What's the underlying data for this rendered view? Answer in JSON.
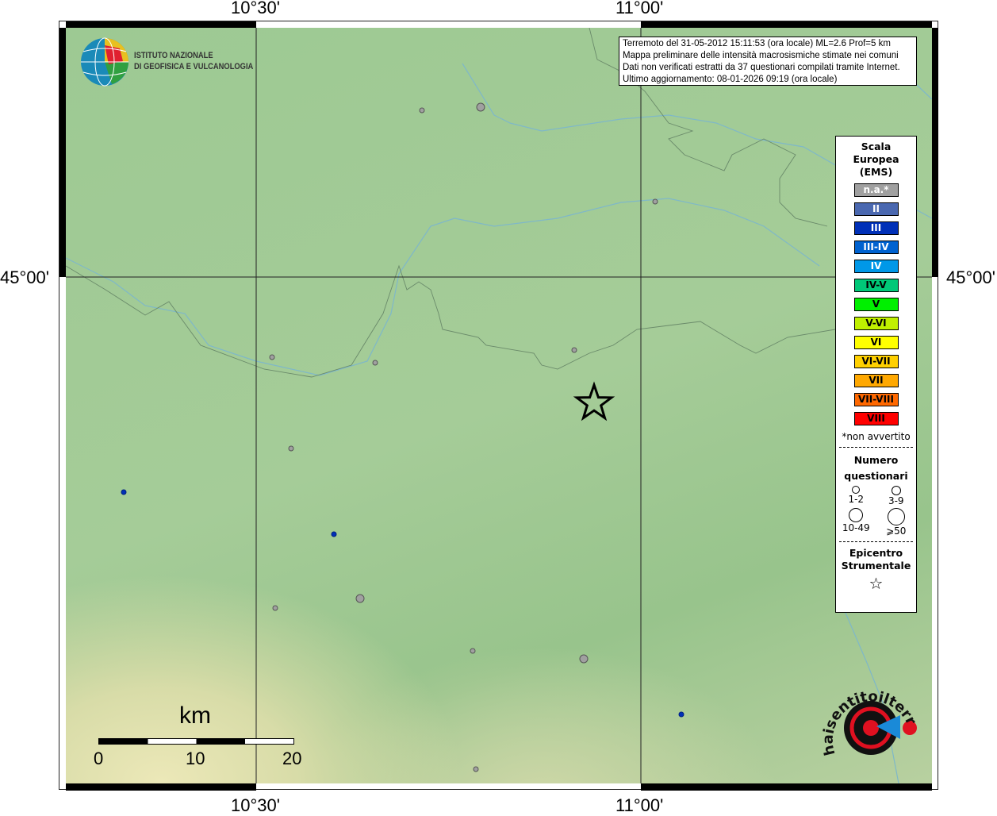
{
  "axes": {
    "lon_labels": [
      "10°30'",
      "11°00'"
    ],
    "lat_labels": [
      "45°00'"
    ]
  },
  "logo_ingv": {
    "line1": "ISTITUTO NAZIONALE",
    "line2": "DI GEOFISICA E VULCANOLOGIA"
  },
  "info": {
    "lines": [
      "Terremoto del 31-05-2012 15:11:53 (ora locale) ML=2.6 Prof=5 km",
      "Mappa preliminare delle intensità macrosismiche stimate nei comuni",
      "Dati non verificati estratti da 37 questionari compilati tramite Internet.",
      "Ultimo aggiornamento: 08-01-2026 09:19 (ora locale)"
    ]
  },
  "legend": {
    "title": [
      "Scala",
      "Europea",
      "(EMS)"
    ],
    "scale": [
      {
        "label": "n.a.*",
        "color": "#a0a0a0",
        "text": "#ffffff"
      },
      {
        "label": "II",
        "color": "#4a68b0",
        "text": "#ffffff"
      },
      {
        "label": "III",
        "color": "#0030b8",
        "text": "#ffffff"
      },
      {
        "label": "III-IV",
        "color": "#0062d0",
        "text": "#ffffff"
      },
      {
        "label": "IV",
        "color": "#0098e8",
        "text": "#ffffff"
      },
      {
        "label": "IV-V",
        "color": "#00c878",
        "text": "#000000"
      },
      {
        "label": "V",
        "color": "#00f000",
        "text": "#000000"
      },
      {
        "label": "V-VI",
        "color": "#c0f000",
        "text": "#000000"
      },
      {
        "label": "VI",
        "color": "#ffff00",
        "text": "#000000"
      },
      {
        "label": "VI-VII",
        "color": "#ffd000",
        "text": "#000000"
      },
      {
        "label": "VII",
        "color": "#ffa800",
        "text": "#000000"
      },
      {
        "label": "VII-VIII",
        "color": "#ff6800",
        "text": "#000000"
      },
      {
        "label": "VIII",
        "color": "#ff0000",
        "text": "#000000"
      }
    ],
    "note": "*non avvertito",
    "count_title": [
      "Numero",
      "questionari"
    ],
    "counts": [
      "1-2",
      "3-9",
      "10-49",
      "⩾50"
    ],
    "epi_title": [
      "Epicentro",
      "Strumentale"
    ]
  },
  "scalebar": {
    "unit": "km",
    "ticks": [
      "0",
      "10",
      "20"
    ]
  },
  "logo_hsit": {
    "text": "www.haisentitoilterremoto.it"
  },
  "points": [
    {
      "intensity": "n.a.*",
      "size": "1-2"
    },
    {
      "intensity": "n.a.*",
      "size": "3-9"
    },
    {
      "intensity": "n.a.*",
      "size": "1-2"
    },
    {
      "intensity": "n.a.*",
      "size": "1-2"
    },
    {
      "intensity": "n.a.*",
      "size": "1-2"
    },
    {
      "intensity": "n.a.*",
      "size": "1-2"
    },
    {
      "intensity": "n.a.*",
      "size": "1-2"
    },
    {
      "intensity": "n.a.*",
      "size": "1-2"
    },
    {
      "intensity": "n.a.*",
      "size": "3-9"
    },
    {
      "intensity": "n.a.*",
      "size": "1-2"
    },
    {
      "intensity": "n.a.*",
      "size": "3-9"
    },
    {
      "intensity": "n.a.*",
      "size": "1-2"
    },
    {
      "intensity": "III",
      "size": "1-2"
    },
    {
      "intensity": "III",
      "size": "1-2"
    },
    {
      "intensity": "III",
      "size": "1-2"
    }
  ]
}
